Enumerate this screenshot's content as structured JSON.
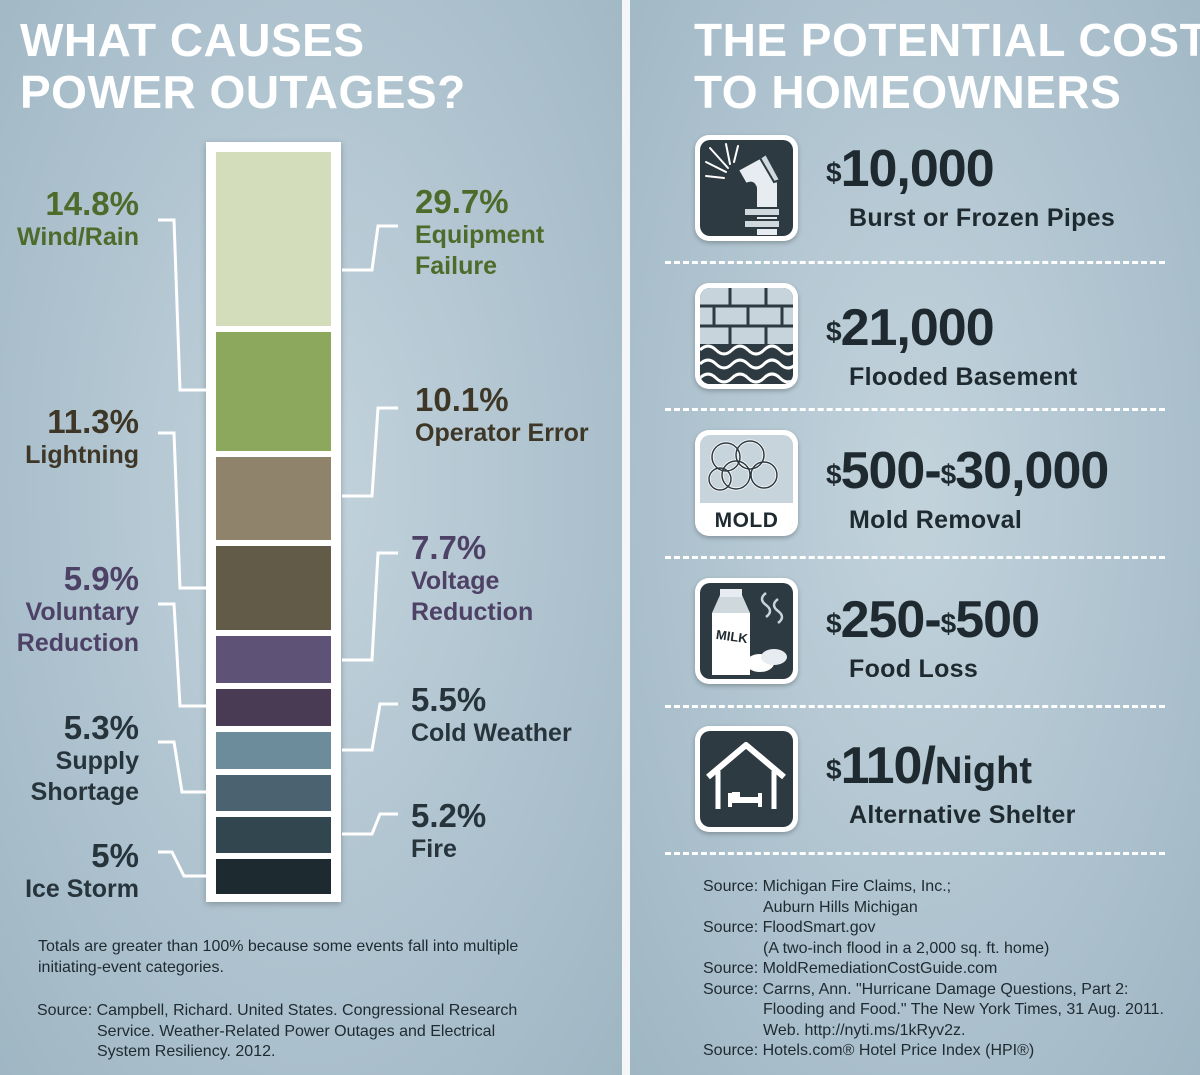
{
  "left": {
    "title_line1": "WHAT CAUSES",
    "title_line2": "POWER OUTAGES?",
    "causes": [
      {
        "pct": "29.7%",
        "name_line1": "Equipment",
        "name_line2": "Failure",
        "color": "#d3ddbb",
        "text_color": "#4e6b2c",
        "value": 29.7
      },
      {
        "pct": "14.8%",
        "name_line1": "Wind/Rain",
        "name_line2": "",
        "color": "#8ba85c",
        "text_color": "#4e6b2c",
        "value": 14.8
      },
      {
        "pct": "10.1%",
        "name_line1": "Operator Error",
        "name_line2": "",
        "color": "#8f836c",
        "text_color": "#3e3727",
        "value": 10.1
      },
      {
        "pct": "11.3%",
        "name_line1": "Lightning",
        "name_line2": "",
        "color": "#625b48",
        "text_color": "#3e3727",
        "value": 11.3
      },
      {
        "pct": "7.7%",
        "name_line1": "Voltage",
        "name_line2": "Reduction",
        "color": "#5e5276",
        "text_color": "#4d4266",
        "value": 7.7
      },
      {
        "pct": "5.9%",
        "name_line1": "Voluntary",
        "name_line2": "Reduction",
        "color": "#4a3b55",
        "text_color": "#4d4266",
        "value": 5.9
      },
      {
        "pct": "5.5%",
        "name_line1": "Cold Weather",
        "name_line2": "",
        "color": "#6c8b9b",
        "text_color": "#27343c",
        "value": 5.5
      },
      {
        "pct": "5.3%",
        "name_line1": "Supply",
        "name_line2": "Shortage",
        "color": "#4b6370",
        "text_color": "#27343c",
        "value": 5.3
      },
      {
        "pct": "5.2%",
        "name_line1": "Fire",
        "name_line2": "",
        "color": "#324650",
        "text_color": "#27343c",
        "value": 5.2
      },
      {
        "pct": "5%",
        "name_line1": "Ice Storm",
        "name_line2": "",
        "color": "#1d2b31",
        "text_color": "#27343c",
        "value": 5
      }
    ],
    "footnote_line1": "Totals are greater than 100% because some events fall into multiple",
    "footnote_line2": "initiating-event categories.",
    "source_line1": "Source: Campbell, Richard. United States. Congressional Research",
    "source_line2": "Service. Weather-Related Power Outages and Electrical",
    "source_line3": "System Resiliency. 2012."
  },
  "right": {
    "title_line1": "THE POTENTIAL COST",
    "title_line2": "TO HOMEOWNERS",
    "costs": [
      {
        "dollar_sign": "$",
        "amount": "10,000",
        "desc": "Burst or Frozen Pipes",
        "icon": "burst-pipe-icon"
      },
      {
        "dollar_sign": "$",
        "amount": "21,000",
        "desc": "Flooded Basement",
        "icon": "flooded-basement-icon"
      },
      {
        "dollar_sign": "$",
        "amount_a": "500",
        "sep": "-",
        "dollar_sign_b": "$",
        "amount_b": "30,000",
        "desc": "Mold Removal",
        "icon": "mold-icon",
        "icon_label": "MOLD"
      },
      {
        "dollar_sign": "$",
        "amount_a": "250",
        "sep": "-",
        "dollar_sign_b": "$",
        "amount_b": "500",
        "desc": "Food Loss",
        "icon": "milk-carton-icon",
        "icon_label": "MILK"
      },
      {
        "dollar_sign": "$",
        "amount": "110/",
        "unit": "Night",
        "desc": "Alternative Shelter",
        "icon": "shelter-icon"
      }
    ],
    "sources": [
      "Source: Michigan Fire Claims, Inc.;",
      "Auburn Hills Michigan",
      "Source: FloodSmart.gov",
      "(A two-inch flood in a 2,000 sq. ft. home)",
      "Source: MoldRemediationCostGuide.com",
      "Source: Carrns, Ann. \"Hurricane Damage Questions, Part 2:",
      "Flooding and Food.\" The New York Times, 31 Aug. 2011.",
      "Web. http://nyti.ms/1kRyv2z.",
      "Source: Hotels.com® Hotel Price Index (HPI®)"
    ]
  }
}
